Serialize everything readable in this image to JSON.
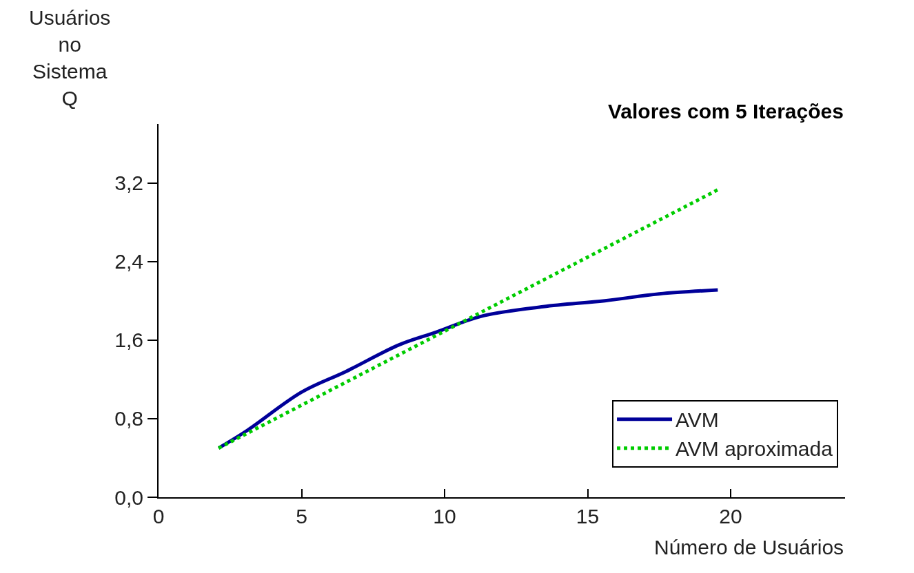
{
  "chart_data": {
    "type": "line",
    "title": "Valores com 5 Iterações",
    "xlabel": "Número de Usuários",
    "ylabel": "Usuários no Sistema Q",
    "xlim": [
      0,
      24
    ],
    "ylim": [
      0,
      3.8
    ],
    "xticks": [
      0,
      5,
      10,
      15,
      20
    ],
    "yticks": [
      {
        "value": 0,
        "label": "0,0"
      },
      {
        "value": 0.8,
        "label": "0,8"
      },
      {
        "value": 1.6,
        "label": "1,6"
      },
      {
        "value": 2.4,
        "label": "2,4"
      },
      {
        "value": 3.2,
        "label": "3,2"
      }
    ],
    "legend": "bottom right",
    "marker": "none",
    "series": [
      {
        "name": "AVM",
        "color": "#000099",
        "line_style": "solid",
        "x": [
          2.1,
          3.1,
          5,
          6.55,
          8.4,
          9.7,
          11.25,
          13.45,
          15.6,
          17.5,
          19.55
        ],
        "values": [
          0.5,
          0.68,
          1.07,
          1.28,
          1.55,
          1.68,
          1.84,
          1.94,
          2.0,
          2.07,
          2.11
        ]
      },
      {
        "name": "AVM aproximada",
        "color": "#00cc00",
        "line_style": "dotted",
        "x": [
          2.1,
          19.55
        ],
        "values": [
          0.5,
          3.13
        ]
      }
    ]
  }
}
